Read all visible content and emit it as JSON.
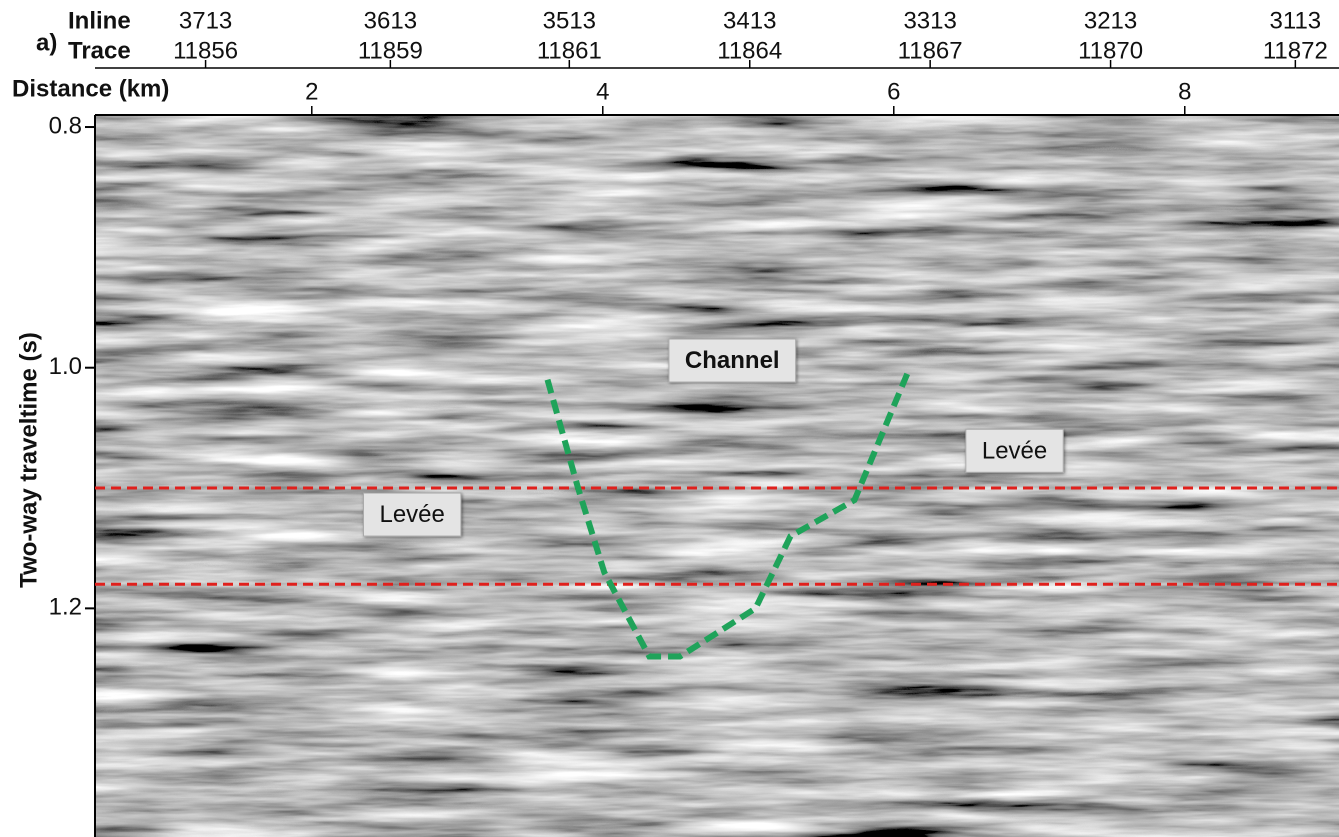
{
  "chart_data": {
    "type": "seismic",
    "panel_label": "a)",
    "top_axis": {
      "inline_title": "Inline",
      "trace_title": "Trace",
      "positions": [
        1.27,
        2.54,
        3.77,
        5.01,
        6.25,
        7.49,
        8.76
      ],
      "inline": [
        "3713",
        "3613",
        "3513",
        "3413",
        "3313",
        "3213",
        "3113"
      ],
      "trace": [
        "11856",
        "11859",
        "11861",
        "11864",
        "11867",
        "11870",
        "11872"
      ]
    },
    "xlabel": "Distance (km)",
    "ylabel": "Two-way traveltime (s)",
    "xlim": [
      0.51,
      9.06
    ],
    "xticks": [
      2,
      4,
      6,
      8
    ],
    "ylim": [
      0.79,
      1.39
    ],
    "yticks": [
      0.8,
      {
        "value": 1.0,
        "label": "1.0"
      },
      1.2
    ],
    "horizons": {
      "color": "#e0201c",
      "values": [
        1.1,
        1.18
      ]
    },
    "channel": {
      "color": "#1fa35a",
      "x": [
        3.62,
        3.83,
        4.01,
        4.32,
        4.53,
        5.05,
        5.29,
        5.73,
        6.11
      ],
      "y": [
        1.01,
        1.1,
        1.17,
        1.24,
        1.24,
        1.2,
        1.14,
        1.11,
        1.0
      ]
    },
    "annotations": [
      {
        "text": "Channel",
        "x": 4.89,
        "y": 0.995,
        "color": "#1fa35a"
      },
      {
        "text": "Levée",
        "x": 6.83,
        "y": 1.07,
        "color": "#444444"
      },
      {
        "text": "Levée",
        "x": 2.69,
        "y": 1.123,
        "color": "#444444"
      }
    ]
  }
}
